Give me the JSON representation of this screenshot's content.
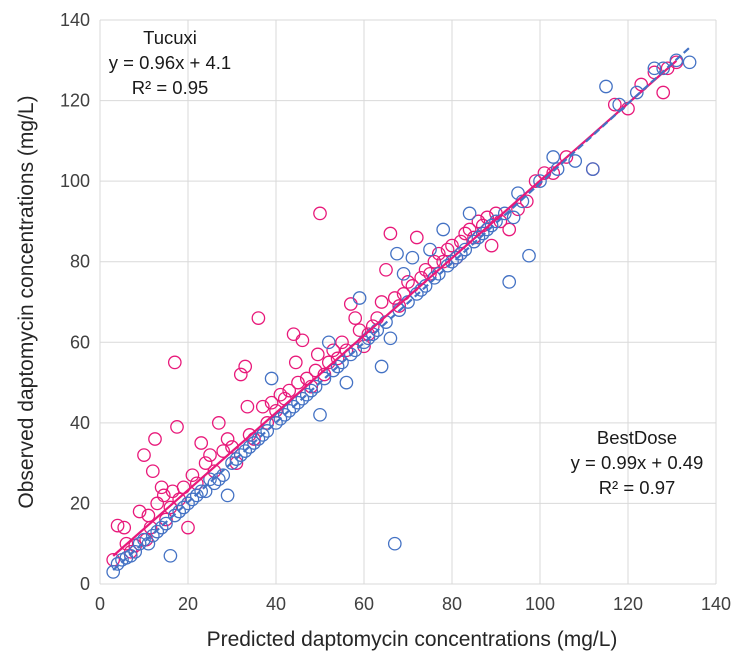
{
  "chart_data": {
    "type": "scatter",
    "title": "",
    "xlabel": "Predicted daptomycin concentrations (mg/L)",
    "ylabel": "Observed daptomycin concentrations (mg/L)",
    "xlim": [
      0,
      140
    ],
    "ylim": [
      0,
      140
    ],
    "x_ticks": [
      "0",
      "20",
      "40",
      "60",
      "80",
      "100",
      "120",
      "140"
    ],
    "y_ticks": [
      "0",
      "20",
      "40",
      "60",
      "80",
      "100",
      "120",
      "140"
    ],
    "grid": true,
    "legend": "none",
    "annotations": {
      "tucuxi": [
        "Tucuxi",
        "y = 0.96x + 4.1",
        "R² = 0.95"
      ],
      "bestdose": [
        "BestDose",
        "y = 0.99x + 0.49",
        "R² = 0.97"
      ]
    },
    "series": [
      {
        "label": "Tucuxi",
        "color": "#e8197a",
        "marker": "open-circle",
        "trendline": {
          "slope": 0.96,
          "intercept": 4.1,
          "x_range": [
            3,
            131
          ],
          "style": "solid"
        },
        "points": [
          [
            3,
            6
          ],
          [
            4,
            14.5
          ],
          [
            5.5,
            14
          ],
          [
            6,
            10
          ],
          [
            7,
            8
          ],
          [
            8,
            9.5
          ],
          [
            9,
            18
          ],
          [
            10,
            32
          ],
          [
            10.5,
            11
          ],
          [
            11,
            17
          ],
          [
            11.5,
            14
          ],
          [
            12,
            28
          ],
          [
            12.5,
            36
          ],
          [
            13,
            20
          ],
          [
            14,
            24
          ],
          [
            14.5,
            22
          ],
          [
            15,
            16
          ],
          [
            16,
            19
          ],
          [
            16.5,
            23
          ],
          [
            17,
            55
          ],
          [
            17.5,
            39
          ],
          [
            18,
            21
          ],
          [
            19,
            24
          ],
          [
            20,
            14
          ],
          [
            21,
            27
          ],
          [
            22,
            25
          ],
          [
            23,
            35
          ],
          [
            24,
            30
          ],
          [
            25,
            32
          ],
          [
            26,
            28
          ],
          [
            27,
            40
          ],
          [
            28,
            33
          ],
          [
            29,
            36
          ],
          [
            30,
            34
          ],
          [
            31,
            30
          ],
          [
            32,
            52
          ],
          [
            33,
            54
          ],
          [
            33.5,
            44
          ],
          [
            34,
            37
          ],
          [
            35,
            36
          ],
          [
            36,
            66
          ],
          [
            37,
            44
          ],
          [
            38,
            40
          ],
          [
            39,
            45
          ],
          [
            40,
            43
          ],
          [
            41,
            47
          ],
          [
            42,
            46
          ],
          [
            43,
            48
          ],
          [
            44,
            62
          ],
          [
            44.5,
            55
          ],
          [
            45,
            50
          ],
          [
            46,
            60.5
          ],
          [
            47,
            51
          ],
          [
            48,
            49
          ],
          [
            49,
            53
          ],
          [
            49.5,
            57
          ],
          [
            50,
            92
          ],
          [
            51,
            52
          ],
          [
            52,
            55
          ],
          [
            53,
            58
          ],
          [
            54,
            56
          ],
          [
            55,
            60
          ],
          [
            56,
            58
          ],
          [
            57,
            69.5
          ],
          [
            58,
            66
          ],
          [
            59,
            63
          ],
          [
            60,
            59
          ],
          [
            61,
            62
          ],
          [
            62,
            64
          ],
          [
            63,
            66
          ],
          [
            64,
            70
          ],
          [
            65,
            78
          ],
          [
            66,
            87
          ],
          [
            67,
            71
          ],
          [
            68,
            69
          ],
          [
            69,
            72
          ],
          [
            70,
            75
          ],
          [
            71,
            74
          ],
          [
            72,
            86
          ],
          [
            73,
            76
          ],
          [
            74,
            78
          ],
          [
            75,
            77
          ],
          [
            76,
            80
          ],
          [
            77,
            82
          ],
          [
            78,
            80
          ],
          [
            79,
            83
          ],
          [
            80,
            84
          ],
          [
            81,
            81
          ],
          [
            82,
            85
          ],
          [
            83,
            87
          ],
          [
            84,
            88
          ],
          [
            85,
            86
          ],
          [
            86,
            90
          ],
          [
            87,
            89
          ],
          [
            88,
            91
          ],
          [
            89,
            84
          ],
          [
            90,
            92
          ],
          [
            91,
            90
          ],
          [
            93,
            88
          ],
          [
            95,
            93
          ],
          [
            97,
            95
          ],
          [
            99,
            100
          ],
          [
            101,
            102
          ],
          [
            103,
            102
          ],
          [
            106,
            106
          ],
          [
            112,
            103
          ],
          [
            117,
            119
          ],
          [
            120,
            118
          ],
          [
            123,
            124
          ],
          [
            126,
            127
          ],
          [
            128,
            122
          ],
          [
            129,
            128
          ],
          [
            131,
            129.5
          ]
        ]
      },
      {
        "label": "BestDose",
        "color": "#4472c4",
        "marker": "open-circle",
        "trendline": {
          "slope": 0.99,
          "intercept": 0.49,
          "x_range": [
            3,
            134
          ],
          "style": "dashed"
        },
        "points": [
          [
            3,
            3
          ],
          [
            4,
            5
          ],
          [
            5,
            6
          ],
          [
            6,
            6.5
          ],
          [
            7,
            7
          ],
          [
            8,
            8
          ],
          [
            9,
            10
          ],
          [
            10,
            11
          ],
          [
            11,
            10
          ],
          [
            12,
            12
          ],
          [
            13,
            13
          ],
          [
            14,
            14
          ],
          [
            15,
            15
          ],
          [
            16,
            7
          ],
          [
            17,
            17
          ],
          [
            18,
            18
          ],
          [
            19,
            19
          ],
          [
            20,
            20
          ],
          [
            21,
            21
          ],
          [
            22,
            22
          ],
          [
            23,
            23
          ],
          [
            24,
            23
          ],
          [
            25,
            26
          ],
          [
            26,
            25
          ],
          [
            27,
            26
          ],
          [
            28,
            27
          ],
          [
            29,
            22
          ],
          [
            30,
            30
          ],
          [
            31,
            31
          ],
          [
            32,
            32
          ],
          [
            33,
            33
          ],
          [
            34,
            34
          ],
          [
            35,
            35
          ],
          [
            36,
            36
          ],
          [
            37,
            37
          ],
          [
            38,
            38
          ],
          [
            39,
            51
          ],
          [
            40,
            40
          ],
          [
            41,
            41
          ],
          [
            42,
            42
          ],
          [
            43,
            43
          ],
          [
            44,
            44
          ],
          [
            45,
            45
          ],
          [
            46,
            46
          ],
          [
            47,
            47
          ],
          [
            48,
            48
          ],
          [
            49,
            49
          ],
          [
            50,
            42
          ],
          [
            51,
            51
          ],
          [
            52,
            60
          ],
          [
            53,
            53
          ],
          [
            54,
            54
          ],
          [
            55,
            55
          ],
          [
            56,
            50
          ],
          [
            57,
            57
          ],
          [
            58,
            58
          ],
          [
            59,
            71
          ],
          [
            60,
            60
          ],
          [
            61,
            61
          ],
          [
            62,
            62
          ],
          [
            63,
            63
          ],
          [
            64,
            54
          ],
          [
            65,
            65
          ],
          [
            66,
            61
          ],
          [
            67,
            10
          ],
          [
            67.5,
            82
          ],
          [
            68,
            68
          ],
          [
            69,
            77
          ],
          [
            70,
            70
          ],
          [
            71,
            81
          ],
          [
            72,
            72
          ],
          [
            73,
            73
          ],
          [
            74,
            74
          ],
          [
            75,
            83
          ],
          [
            76,
            76
          ],
          [
            77,
            77
          ],
          [
            78,
            88
          ],
          [
            79,
            79
          ],
          [
            80,
            80
          ],
          [
            81,
            81
          ],
          [
            82,
            82
          ],
          [
            83,
            83
          ],
          [
            84,
            92
          ],
          [
            85,
            85
          ],
          [
            86,
            86
          ],
          [
            87,
            87
          ],
          [
            88,
            88
          ],
          [
            89,
            89
          ],
          [
            90,
            90
          ],
          [
            92,
            92
          ],
          [
            93,
            75
          ],
          [
            94,
            91
          ],
          [
            95,
            97
          ],
          [
            96,
            95
          ],
          [
            97.5,
            81.5
          ],
          [
            100,
            100
          ],
          [
            103,
            106
          ],
          [
            104,
            103
          ],
          [
            108,
            105
          ],
          [
            112,
            103
          ],
          [
            115,
            123.5
          ],
          [
            118,
            119
          ],
          [
            122,
            122
          ],
          [
            126,
            128
          ],
          [
            128,
            128
          ],
          [
            131,
            130
          ],
          [
            134,
            129.5
          ]
        ]
      }
    ]
  }
}
